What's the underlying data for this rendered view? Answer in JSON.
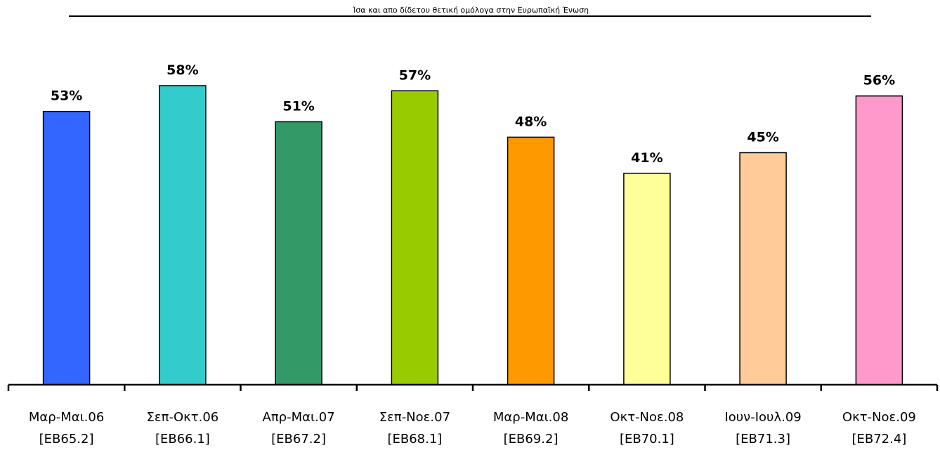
{
  "chart_data": {
    "type": "bar",
    "title": "Ίσα και απο δίδετου θετική ομόλογα στην Ευρωπαϊκή Ένωση",
    "categories": [
      [
        "Μαρ-Μαι.06",
        "[EB65.2]"
      ],
      [
        "Σεπ-Οκτ.06",
        "[EB66.1]"
      ],
      [
        "Απρ-Μαι.07",
        "[EB67.2]"
      ],
      [
        "Σεπ-Νοε.07",
        "[EB68.1]"
      ],
      [
        "Μαρ-Μαι.08",
        "[EB69.2]"
      ],
      [
        "Οκτ-Νοε.08",
        "[EB70.1]"
      ],
      [
        "Ιουν-Ιουλ.09",
        "[EB71.3]"
      ],
      [
        "Οκτ-Νοε.09",
        "[EB72.4]"
      ]
    ],
    "values": [
      53,
      58,
      51,
      57,
      48,
      41,
      45,
      56
    ],
    "value_labels": [
      "53%",
      "58%",
      "51%",
      "57%",
      "48%",
      "41%",
      "45%",
      "56%"
    ],
    "colors": [
      "#3366ff",
      "#33cccc",
      "#339966",
      "#99cc00",
      "#ff9900",
      "#ffff99",
      "#ffcc99",
      "#ff99cc"
    ],
    "ylim": [
      0,
      70
    ],
    "grid": false,
    "legend": "none",
    "xlabel": "",
    "ylabel": ""
  }
}
